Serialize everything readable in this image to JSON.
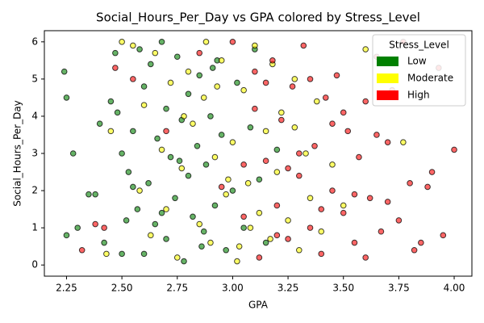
{
  "chart_data": {
    "type": "scatter",
    "title": "Social_Hours_Per_Day vs GPA colored by Stress_Level",
    "x_label": "GPA",
    "y_label": "Social_Hours_Per_Day",
    "legend_title": "Stress_Level",
    "legend": "upper right",
    "xlim": [
      2.15,
      4.08
    ],
    "ylim": [
      -0.3,
      6.3
    ],
    "xticks": [
      2.25,
      {
        "value": 2.5,
        "label": "2.50"
      },
      2.75,
      {
        "value": 3,
        "label": "3.00"
      },
      3.25,
      {
        "value": 3.5,
        "label": "3.50"
      },
      3.75,
      {
        "value": 4,
        "label": "4.00"
      }
    ],
    "yticks": [
      0,
      1,
      2,
      3,
      4,
      5,
      6
    ],
    "series": [
      {
        "name": "Low",
        "color": "green",
        "x": [
          2.24,
          2.25,
          2.25,
          2.28,
          2.3,
          2.35,
          2.38,
          2.4,
          2.42,
          2.45,
          2.47,
          2.48,
          2.5,
          2.5,
          2.52,
          2.53,
          2.55,
          2.57,
          2.58,
          2.6,
          2.6,
          2.62,
          2.63,
          2.65,
          2.66,
          2.68,
          2.7,
          2.7,
          2.72,
          2.74,
          2.75,
          2.77,
          2.78,
          2.8,
          2.8,
          2.82,
          2.84,
          2.85,
          2.87,
          2.88,
          2.9,
          2.92,
          2.93,
          2.95,
          2.97,
          3.0,
          3.02,
          3.05,
          3.08,
          3.1,
          3.12,
          3.15,
          3.2,
          2.55,
          2.68,
          2.76,
          2.86,
          2.91
        ],
        "values": [
          5.2,
          4.5,
          0.8,
          3.0,
          1.0,
          1.9,
          1.9,
          3.8,
          0.6,
          4.4,
          5.7,
          4.1,
          3.0,
          0.3,
          1.2,
          2.5,
          3.6,
          1.5,
          5.8,
          0.3,
          4.8,
          2.2,
          5.4,
          1.1,
          3.4,
          6.0,
          0.7,
          4.2,
          2.9,
          1.8,
          5.6,
          3.9,
          0.1,
          2.4,
          4.6,
          1.3,
          3.2,
          5.1,
          0.9,
          2.7,
          4.0,
          1.6,
          5.5,
          3.5,
          0.4,
          2.0,
          4.9,
          1.0,
          3.7,
          5.8,
          2.3,
          0.6,
          3.1,
          2.1,
          1.4,
          2.8,
          0.5,
          5.3
        ]
      },
      {
        "name": "Moderate",
        "color": "yellow",
        "x": [
          2.43,
          2.45,
          2.5,
          2.55,
          2.58,
          2.6,
          2.63,
          2.65,
          2.68,
          2.7,
          2.72,
          2.75,
          2.77,
          2.8,
          2.82,
          2.85,
          2.87,
          2.9,
          2.92,
          2.95,
          2.97,
          3.0,
          3.02,
          3.05,
          3.07,
          3.1,
          3.12,
          3.15,
          3.17,
          3.2,
          3.22,
          3.25,
          3.28,
          3.3,
          3.33,
          3.35,
          3.38,
          3.4,
          3.45,
          3.5,
          3.6,
          3.77,
          2.78,
          2.88,
          2.98,
          3.08,
          3.18,
          3.28,
          3.03,
          2.93
        ],
        "values": [
          0.3,
          3.6,
          6.0,
          5.9,
          2.0,
          4.3,
          0.8,
          5.7,
          3.1,
          1.5,
          4.9,
          0.2,
          2.6,
          5.2,
          3.8,
          1.1,
          4.5,
          0.6,
          2.9,
          5.5,
          1.9,
          3.3,
          0.1,
          4.7,
          2.2,
          5.9,
          1.4,
          3.6,
          0.7,
          2.5,
          4.1,
          1.2,
          5.0,
          0.4,
          3.0,
          1.8,
          4.4,
          0.9,
          2.7,
          1.6,
          5.8,
          3.3,
          4.0,
          6.0,
          2.3,
          1.0,
          5.4,
          3.7,
          0.5,
          4.8
        ]
      },
      {
        "name": "High",
        "color": "red",
        "x": [
          2.32,
          2.38,
          2.42,
          2.47,
          2.55,
          2.7,
          2.85,
          2.95,
          3.0,
          3.05,
          3.1,
          3.12,
          3.15,
          3.18,
          3.2,
          3.22,
          3.25,
          3.27,
          3.3,
          3.32,
          3.35,
          3.37,
          3.4,
          3.42,
          3.45,
          3.47,
          3.5,
          3.52,
          3.55,
          3.57,
          3.6,
          3.62,
          3.65,
          3.67,
          3.7,
          3.72,
          3.75,
          3.77,
          3.8,
          3.82,
          3.85,
          3.88,
          3.9,
          3.93,
          3.95,
          4.0,
          3.25,
          3.35,
          3.45,
          3.55,
          3.65,
          3.15,
          3.05,
          3.4,
          3.5,
          3.6,
          3.3,
          3.2,
          3.1,
          3.7
        ],
        "values": [
          0.4,
          1.1,
          1.0,
          5.3,
          5.0,
          3.6,
          5.7,
          2.1,
          6.0,
          1.3,
          4.2,
          0.2,
          2.8,
          5.5,
          1.6,
          3.9,
          0.7,
          4.8,
          2.4,
          5.9,
          1.0,
          3.2,
          0.3,
          4.5,
          2.0,
          5.1,
          1.4,
          3.6,
          0.6,
          2.9,
          4.4,
          1.8,
          5.6,
          0.9,
          3.3,
          4.7,
          1.2,
          6.0,
          2.2,
          0.4,
          0.6,
          2.1,
          2.5,
          5.3,
          0.8,
          3.1,
          2.6,
          5.0,
          3.8,
          1.9,
          3.5,
          4.9,
          2.7,
          1.5,
          4.1,
          0.2,
          3.0,
          0.8,
          5.2,
          1.7
        ]
      }
    ]
  }
}
